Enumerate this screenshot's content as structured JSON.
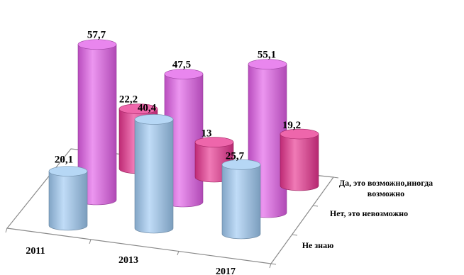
{
  "chart_data": {
    "type": "bar",
    "subtype": "3d-cylinder",
    "categories": [
      "2011",
      "2013",
      "2017"
    ],
    "series": [
      {
        "name": "Да, это возможно,иногда возможно",
        "label_lines": [
          "Да, это возможно,иногда",
          "возможно"
        ],
        "values": [
          57.7,
          47.5,
          55.1
        ],
        "value_labels": [
          "57,7",
          "47,5",
          "55,1"
        ],
        "color": "#e25ee8"
      },
      {
        "name": "Нет, это невозможно",
        "label_lines": [
          "Нет, это невозможно"
        ],
        "values": [
          22.2,
          13,
          19.2
        ],
        "value_labels": [
          "22,2",
          "13",
          "19,2"
        ],
        "color": "#e8338f"
      },
      {
        "name": "Не знаю",
        "label_lines": [
          "Не знаю"
        ],
        "values": [
          20.1,
          40.4,
          25.7
        ],
        "value_labels": [
          "20,1",
          "40,4",
          "25,7"
        ],
        "color": "#9ec9f2"
      }
    ],
    "title": "",
    "xlabel": "",
    "ylabel": "",
    "legend": "depth-axis labels on right",
    "grid": false
  }
}
